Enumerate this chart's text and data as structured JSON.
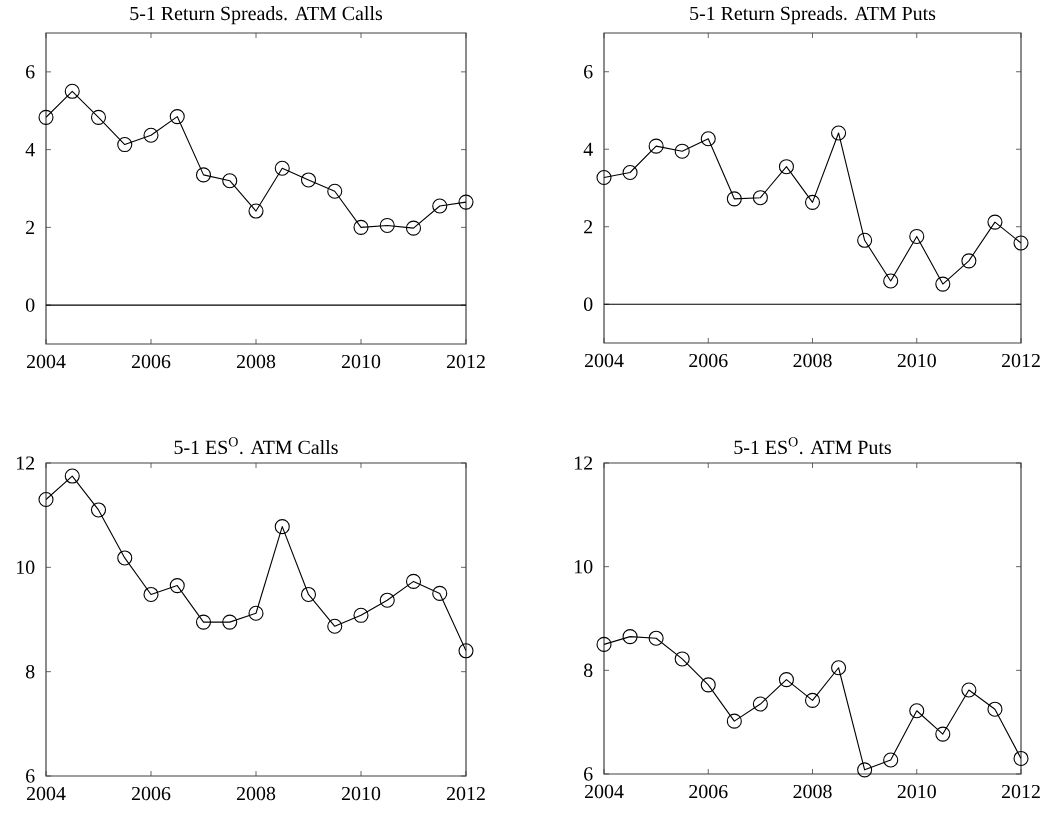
{
  "chart_data": [
    {
      "type": "line",
      "title": "5-1 Return Spreads.  ATM Calls",
      "marker": "circle",
      "line_style": "solid",
      "x": [
        2004,
        2004.5,
        2005,
        2005.5,
        2006,
        2006.5,
        2007,
        2007.5,
        2008,
        2008.5,
        2009,
        2009.5,
        2010,
        2010.5,
        2011,
        2011.5,
        2012
      ],
      "series": [
        {
          "color": "#000000",
          "values": [
            4.83,
            5.5,
            4.83,
            4.13,
            4.37,
            4.85,
            3.35,
            3.2,
            2.42,
            3.52,
            3.22,
            2.93,
            2.0,
            2.05,
            1.98,
            2.55,
            2.65
          ]
        }
      ],
      "xlim": [
        2004,
        2012
      ],
      "xticks": [
        2004,
        2006,
        2008,
        2010,
        2012
      ],
      "ylim": [
        -1,
        7
      ],
      "yticks": [
        0,
        2,
        4,
        6
      ],
      "ref_lines": [
        {
          "axis": "y",
          "value": 0,
          "color": "#000000"
        }
      ]
    },
    {
      "type": "line",
      "title": "5-1 Return Spreads.  ATM Puts",
      "marker": "circle",
      "line_style": "solid",
      "x": [
        2004,
        2004.5,
        2005,
        2005.5,
        2006,
        2006.5,
        2007,
        2007.5,
        2008,
        2008.5,
        2009,
        2009.5,
        2010,
        2010.5,
        2011,
        2011.5,
        2012
      ],
      "series": [
        {
          "color": "#000000",
          "values": [
            3.27,
            3.4,
            4.08,
            3.95,
            4.27,
            2.72,
            2.75,
            3.55,
            2.63,
            4.42,
            1.65,
            0.6,
            1.75,
            0.52,
            1.12,
            2.12,
            1.58
          ]
        }
      ],
      "xlim": [
        2004,
        2012
      ],
      "xticks": [
        2004,
        2006,
        2008,
        2010,
        2012
      ],
      "ylim": [
        -1,
        7
      ],
      "yticks": [
        0,
        2,
        4,
        6
      ],
      "ref_lines": [
        {
          "axis": "y",
          "value": 0,
          "color": "#000000"
        }
      ]
    },
    {
      "type": "line",
      "title": "5-1 ES$^{O}$. ATM Calls",
      "marker": "circle",
      "line_style": "solid",
      "x": [
        2004,
        2004.5,
        2005,
        2005.5,
        2006,
        2006.5,
        2007,
        2007.5,
        2008,
        2008.5,
        2009,
        2009.5,
        2010,
        2010.5,
        2011,
        2011.5,
        2012
      ],
      "series": [
        {
          "color": "#000000",
          "values": [
            11.3,
            11.75,
            11.1,
            10.18,
            9.48,
            9.65,
            8.95,
            8.95,
            9.12,
            10.78,
            9.48,
            8.87,
            9.08,
            9.37,
            9.73,
            9.5,
            8.4
          ]
        }
      ],
      "xlim": [
        2004,
        2012
      ],
      "xticks": [
        2004,
        2006,
        2008,
        2010,
        2012
      ],
      "ylim": [
        6,
        12
      ],
      "yticks": [
        6,
        8,
        10,
        12
      ]
    },
    {
      "type": "line",
      "title": "5-1 ES$^{O}$. ATM Puts",
      "marker": "circle",
      "line_style": "solid",
      "x": [
        2004,
        2004.5,
        2005,
        2005.5,
        2006,
        2006.5,
        2007,
        2007.5,
        2008,
        2008.5,
        2009,
        2009.5,
        2010,
        2010.5,
        2011,
        2011.5,
        2012
      ],
      "series": [
        {
          "color": "#000000",
          "values": [
            8.5,
            8.65,
            8.62,
            8.22,
            7.72,
            7.02,
            7.35,
            7.82,
            7.42,
            8.05,
            6.08,
            6.27,
            7.22,
            6.77,
            7.62,
            7.25,
            6.3
          ]
        }
      ],
      "xlim": [
        2004,
        2012
      ],
      "xticks": [
        2004,
        2006,
        2008,
        2010,
        2012
      ],
      "ylim": [
        6,
        12
      ],
      "yticks": [
        6,
        8,
        10,
        12
      ]
    }
  ]
}
